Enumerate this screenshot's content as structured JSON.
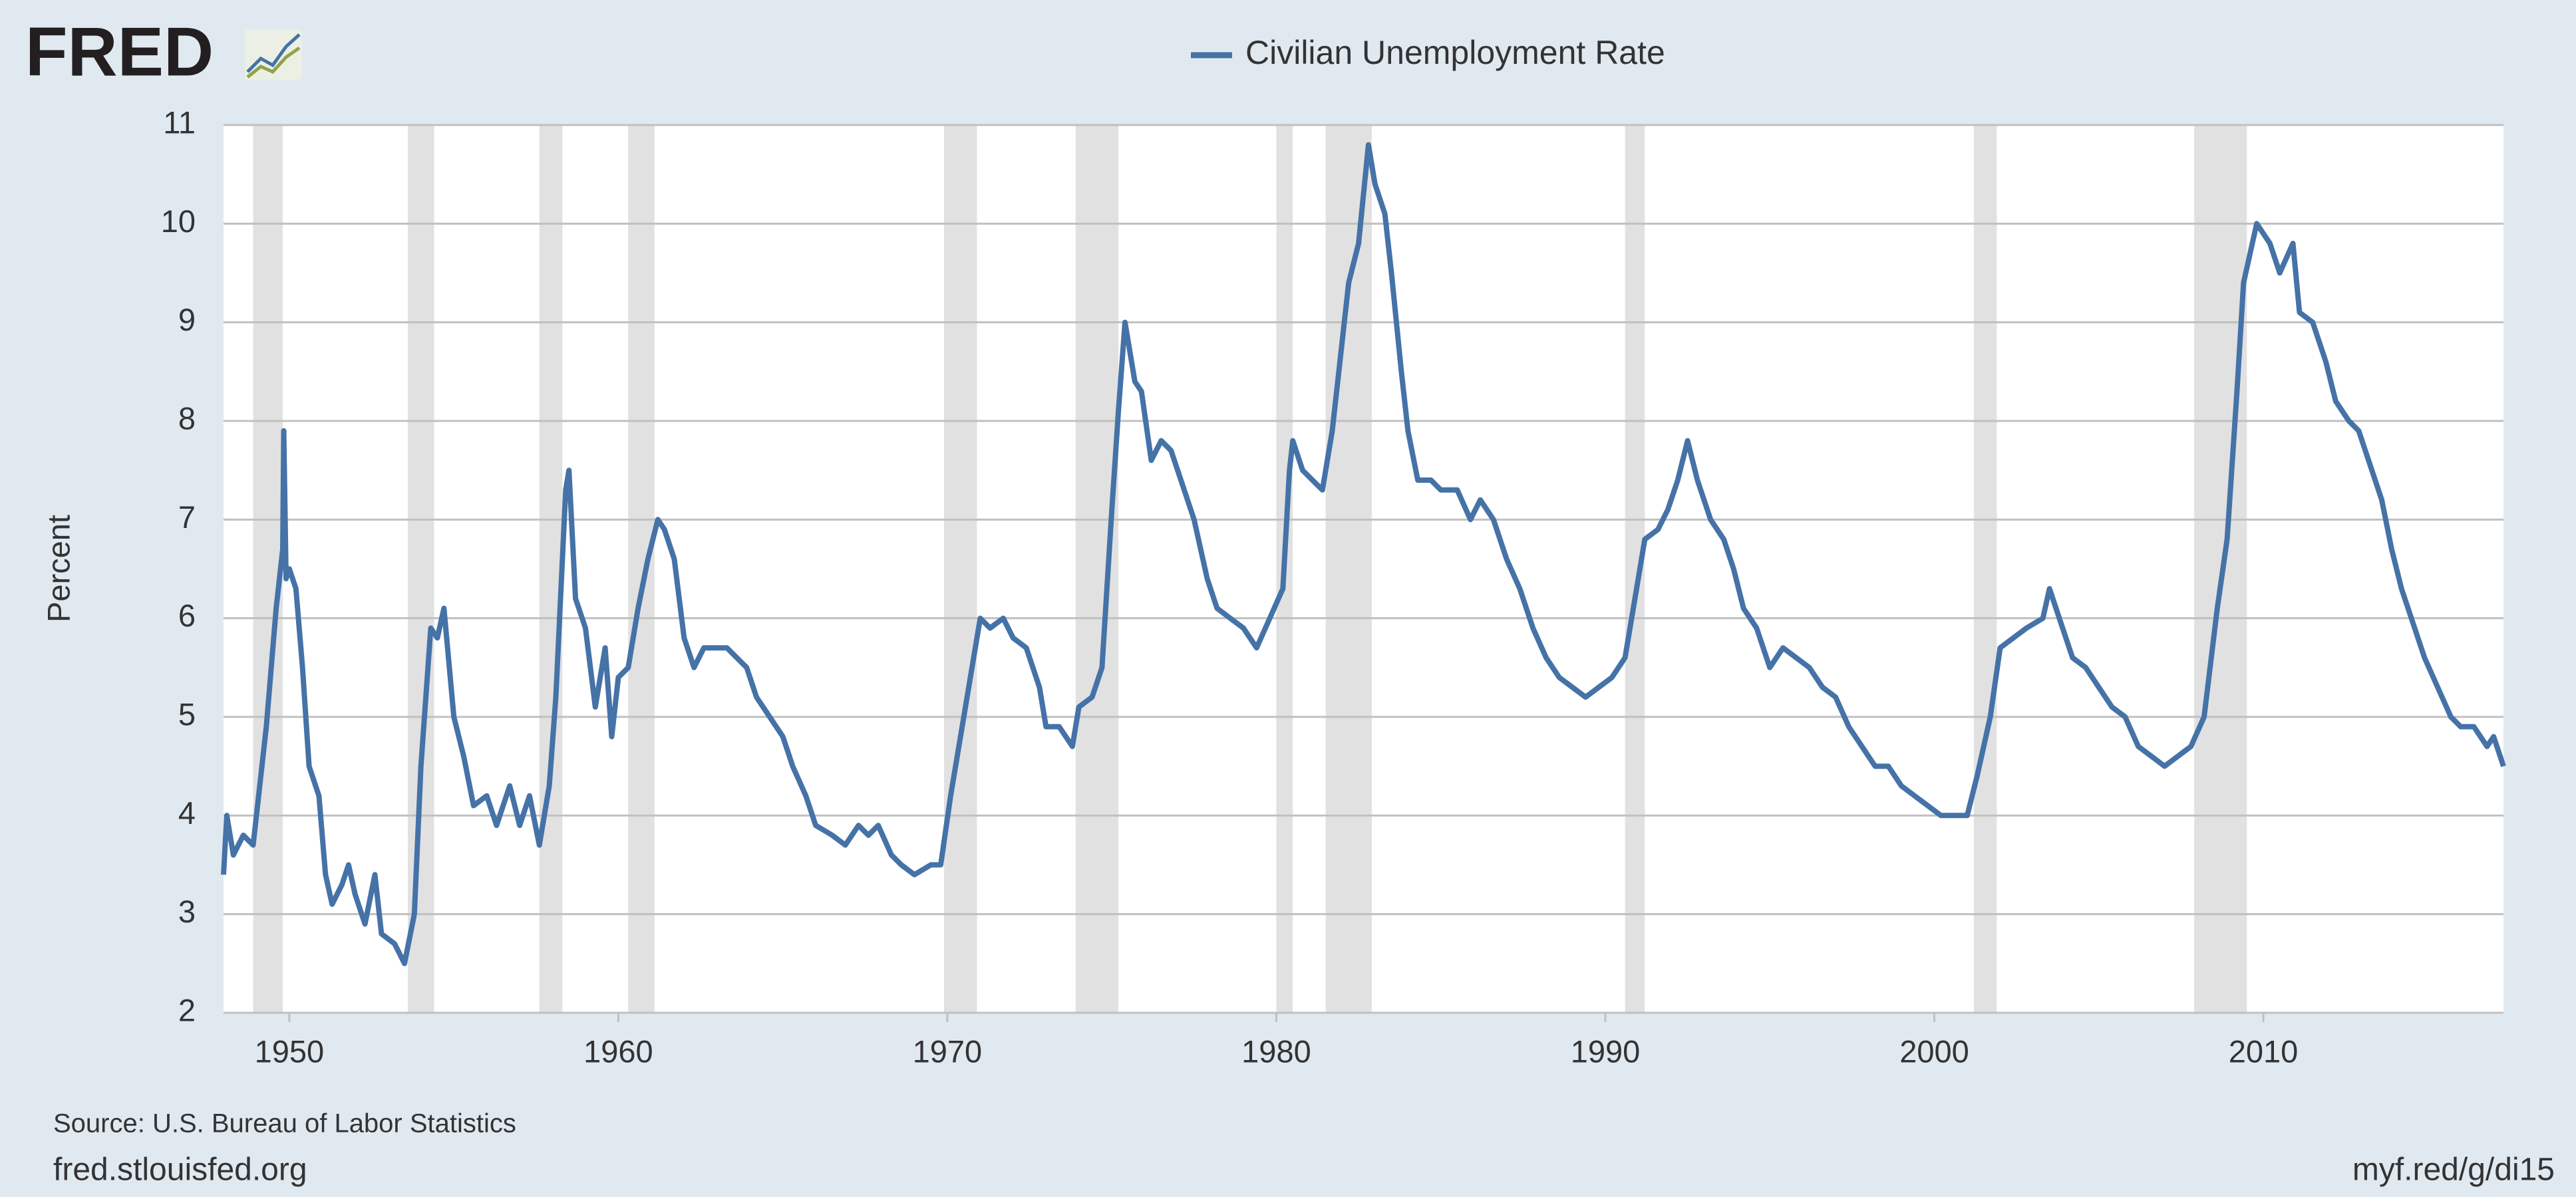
{
  "chart_data": {
    "type": "line",
    "logo": "FRED",
    "ylabel": "Percent",
    "source": "Source: U.S. Bureau of Labor Statistics",
    "footer_left": "fred.stlouisfed.org",
    "footer_right": "myf.red/g/di15",
    "xlim": [
      1948,
      2017.3
    ],
    "ylim": [
      2,
      11
    ],
    "xticks": [
      1950,
      1960,
      1970,
      1980,
      1990,
      2000,
      2010
    ],
    "yticks": [
      2,
      3,
      4,
      5,
      6,
      7,
      8,
      9,
      10,
      11
    ],
    "grid": true,
    "recession_color": "#e1e1e1",
    "recessions": [
      [
        1948.9,
        1949.8
      ],
      [
        1953.6,
        1954.4
      ],
      [
        1957.6,
        1958.3
      ],
      [
        1960.3,
        1961.1
      ],
      [
        1969.9,
        1970.9
      ],
      [
        1973.9,
        1975.2
      ],
      [
        1980.0,
        1980.5
      ],
      [
        1981.5,
        1982.9
      ],
      [
        1990.6,
        1991.2
      ],
      [
        2001.2,
        2001.9
      ],
      [
        2007.9,
        2009.5
      ]
    ],
    "x": [
      1948.0,
      1948.1,
      1948.3,
      1948.6,
      1948.9,
      1949.3,
      1949.6,
      1949.8,
      1949.83,
      1949.9,
      1950.0,
      1950.2,
      1950.4,
      1950.6,
      1950.9,
      1951.1,
      1951.3,
      1951.6,
      1951.8,
      1952.0,
      1952.3,
      1952.6,
      1952.8,
      1953.2,
      1953.5,
      1953.8,
      1954.0,
      1954.3,
      1954.5,
      1954.7,
      1955.0,
      1955.3,
      1955.6,
      1956.0,
      1956.3,
      1956.7,
      1957.0,
      1957.3,
      1957.6,
      1957.9,
      1958.1,
      1958.4,
      1958.5,
      1958.7,
      1959.0,
      1959.3,
      1959.6,
      1959.8,
      1960.0,
      1960.3,
      1960.6,
      1960.9,
      1961.2,
      1961.4,
      1961.7,
      1962.0,
      1962.3,
      1962.6,
      1963.0,
      1963.3,
      1963.6,
      1963.9,
      1964.2,
      1964.6,
      1965.0,
      1965.3,
      1965.7,
      1966.0,
      1966.5,
      1966.9,
      1967.3,
      1967.6,
      1967.9,
      1968.3,
      1968.6,
      1969.0,
      1969.5,
      1969.8,
      1970.1,
      1970.5,
      1970.8,
      1971.0,
      1971.3,
      1971.7,
      1972.0,
      1972.4,
      1972.8,
      1973.0,
      1973.4,
      1973.8,
      1974.0,
      1974.4,
      1974.7,
      1975.0,
      1975.2,
      1975.4,
      1975.7,
      1975.9,
      1976.2,
      1976.5,
      1976.8,
      1977.2,
      1977.5,
      1977.9,
      1978.2,
      1978.6,
      1979.0,
      1979.4,
      1979.8,
      1980.2,
      1980.4,
      1980.5,
      1980.8,
      1981.1,
      1981.4,
      1981.7,
      1981.9,
      1982.2,
      1982.5,
      1982.8,
      1983.0,
      1983.3,
      1983.5,
      1983.8,
      1984.0,
      1984.3,
      1984.7,
      1985.0,
      1985.5,
      1985.9,
      1986.2,
      1986.6,
      1987.0,
      1987.4,
      1987.8,
      1988.2,
      1988.6,
      1989.0,
      1989.4,
      1989.8,
      1990.2,
      1990.6,
      1990.9,
      1991.2,
      1991.6,
      1991.9,
      1992.2,
      1992.5,
      1992.8,
      1993.2,
      1993.6,
      1993.9,
      1994.2,
      1994.6,
      1995.0,
      1995.4,
      1995.8,
      1996.2,
      1996.6,
      1997.0,
      1997.4,
      1997.8,
      1998.2,
      1998.6,
      1999.0,
      1999.4,
      1999.8,
      2000.2,
      2000.6,
      2001.0,
      2001.3,
      2001.7,
      2002.0,
      2002.4,
      2002.8,
      2003.3,
      2003.5,
      2003.8,
      2004.2,
      2004.6,
      2005.0,
      2005.4,
      2005.8,
      2006.2,
      2006.6,
      2007.0,
      2007.4,
      2007.8,
      2008.2,
      2008.6,
      2008.9,
      2009.2,
      2009.4,
      2009.8,
      2010.2,
      2010.5,
      2010.9,
      2011.1,
      2011.5,
      2011.9,
      2012.2,
      2012.6,
      2012.9,
      2013.2,
      2013.6,
      2013.9,
      2014.2,
      2014.6,
      2014.9,
      2015.3,
      2015.7,
      2016.0,
      2016.4,
      2016.8,
      2017.0,
      2017.3
    ],
    "series": [
      {
        "name": "Civilian Unemployment Rate",
        "color": "#4572a7",
        "values": [
          3.4,
          4.0,
          3.6,
          3.8,
          3.7,
          4.9,
          6.1,
          6.7,
          7.9,
          6.4,
          6.5,
          6.3,
          5.5,
          4.5,
          4.2,
          3.4,
          3.1,
          3.3,
          3.5,
          3.2,
          2.9,
          3.4,
          2.8,
          2.7,
          2.5,
          3.0,
          4.5,
          5.9,
          5.8,
          6.1,
          5.0,
          4.6,
          4.1,
          4.2,
          3.9,
          4.3,
          3.9,
          4.2,
          3.7,
          4.3,
          5.2,
          7.3,
          7.5,
          6.2,
          5.9,
          5.1,
          5.7,
          4.8,
          5.4,
          5.5,
          6.1,
          6.6,
          7.0,
          6.9,
          6.6,
          5.8,
          5.5,
          5.7,
          5.7,
          5.7,
          5.6,
          5.5,
          5.2,
          5.0,
          4.8,
          4.5,
          4.2,
          3.9,
          3.8,
          3.7,
          3.9,
          3.8,
          3.9,
          3.6,
          3.5,
          3.4,
          3.5,
          3.5,
          4.2,
          5.0,
          5.6,
          6.0,
          5.9,
          6.0,
          5.8,
          5.7,
          5.3,
          4.9,
          4.9,
          4.7,
          5.1,
          5.2,
          5.5,
          7.1,
          8.1,
          9.0,
          8.4,
          8.3,
          7.6,
          7.8,
          7.7,
          7.3,
          7.0,
          6.4,
          6.1,
          6.0,
          5.9,
          5.7,
          6.0,
          6.3,
          7.5,
          7.8,
          7.5,
          7.4,
          7.3,
          7.9,
          8.5,
          9.4,
          9.8,
          10.8,
          10.4,
          10.1,
          9.5,
          8.5,
          7.9,
          7.4,
          7.4,
          7.3,
          7.3,
          7.0,
          7.2,
          7.0,
          6.6,
          6.3,
          5.9,
          5.6,
          5.4,
          5.3,
          5.2,
          5.3,
          5.4,
          5.6,
          6.2,
          6.8,
          6.9,
          7.1,
          7.4,
          7.8,
          7.4,
          7.0,
          6.8,
          6.5,
          6.1,
          5.9,
          5.5,
          5.7,
          5.6,
          5.5,
          5.3,
          5.2,
          4.9,
          4.7,
          4.5,
          4.5,
          4.3,
          4.2,
          4.1,
          4.0,
          4.0,
          4.0,
          4.4,
          5.0,
          5.7,
          5.8,
          5.9,
          6.0,
          6.3,
          6.0,
          5.6,
          5.5,
          5.3,
          5.1,
          5.0,
          4.7,
          4.6,
          4.5,
          4.6,
          4.7,
          5.0,
          6.1,
          6.8,
          8.3,
          9.4,
          10.0,
          9.8,
          9.5,
          9.8,
          9.1,
          9.0,
          8.6,
          8.2,
          8.0,
          7.9,
          7.6,
          7.2,
          6.7,
          6.3,
          5.9,
          5.6,
          5.3,
          5.0,
          4.9,
          4.9,
          4.7,
          4.8,
          4.5
        ]
      }
    ]
  }
}
